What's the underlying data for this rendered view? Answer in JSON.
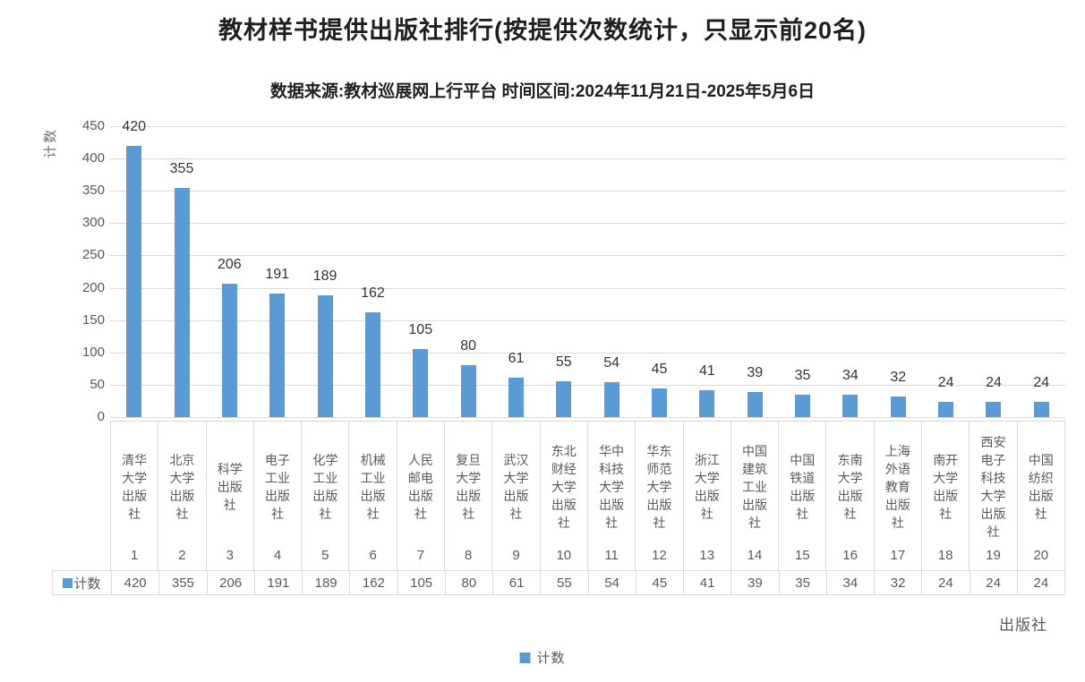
{
  "chart_data": {
    "type": "bar",
    "title": "教材样书提供出版社排行(按提供次数统计，只显示前20名)",
    "subtitle": "数据来源:教材巡展网上行平台 时间区间:2024年11月21日-2025年5月6日",
    "ylabel": "计数",
    "xlabel": "出版社",
    "legend_label": "计数",
    "series": [
      {
        "name": "计数",
        "values": [
          420,
          355,
          206,
          191,
          189,
          162,
          105,
          80,
          61,
          55,
          54,
          45,
          41,
          39,
          35,
          34,
          32,
          24,
          24,
          24
        ]
      }
    ],
    "categories": [
      "清华大学出版社",
      "北京大学出版社",
      "科学出版社",
      "电子工业出版社",
      "化学工业出版社",
      "机械工业出版社",
      "人民邮电出版社",
      "复旦大学出版社",
      "武汉大学出版社",
      "东北财经大学出版社",
      "华中科技大学出版社",
      "华东师范大学出版社",
      "浙江大学出版社",
      "中国建筑工业出版社",
      "中国铁道出版社",
      "东南大学出版社",
      "上海外语教育出版社",
      "南开大学出版社",
      "西安电子科技大学出版社",
      "中国纺织出版社"
    ],
    "ranks": [
      "1",
      "2",
      "3",
      "4",
      "5",
      "6",
      "7",
      "8",
      "9",
      "10",
      "11",
      "12",
      "13",
      "14",
      "15",
      "16",
      "17",
      "18",
      "19",
      "20"
    ],
    "yticks": [
      450,
      400,
      350,
      300,
      250,
      200,
      150,
      100,
      50,
      0
    ],
    "ylim": [
      0,
      450
    ],
    "grid": true,
    "legend_position": "bottom",
    "bar_color": "#5B9BD5",
    "table_row_name": "计数"
  }
}
